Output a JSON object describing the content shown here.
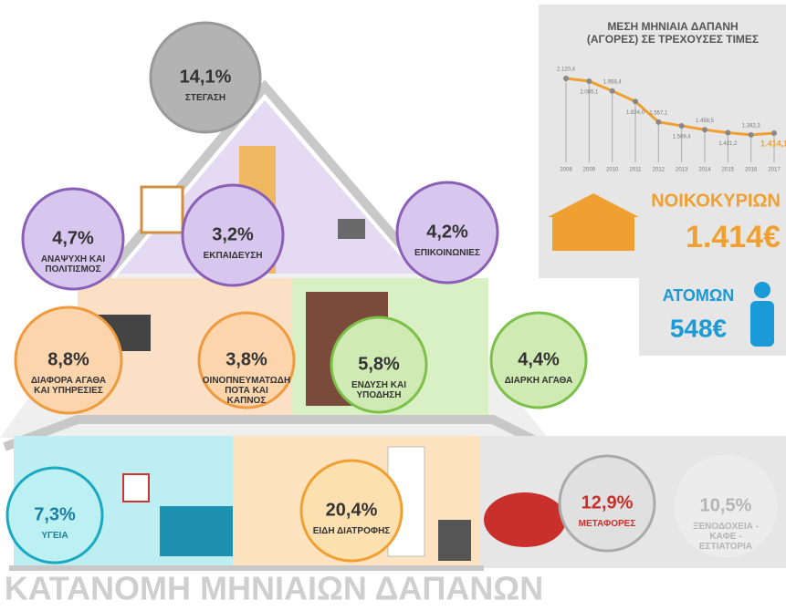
{
  "title": "ΚΑΤΑΝΟΜΗ ΜΗΝΙΑΙΩΝ ΔΑΠΑΝΩΝ",
  "items": [
    {
      "value": "14,1%",
      "label": "ΣΤΕΓΑΣΗ"
    },
    {
      "value": "4,7%",
      "label": "ΑΝΑΨΥΧΗ ΚΑΙ ΠΟΛΙΤΙΣΜΟΣ"
    },
    {
      "value": "3,2%",
      "label": "ΕΚΠΑΙΔΕΥΣΗ"
    },
    {
      "value": "4,2%",
      "label": "ΕΠΙΚΟΙΝΩΝΙΕΣ"
    },
    {
      "value": "8,8%",
      "label": "ΔΙΑΦΟΡΑ ΑΓΑΘΑ ΚΑΙ ΥΠΗΡΕΣΙΕΣ"
    },
    {
      "value": "3,8%",
      "label": "ΟΙΝΟΠΝΕΥΜΑΤΩΔΗ ΠΟΤΑ ΚΑΙ ΚΑΠΝΟΣ"
    },
    {
      "value": "5,8%",
      "label": "ΕΝΔΥΣΗ ΚΑΙ ΥΠΟΔΗΣΗ"
    },
    {
      "value": "4,4%",
      "label": "ΔΙΑΡΚΗ ΑΓΑΘΑ"
    },
    {
      "value": "7,3%",
      "label": "ΥΓΕΙΑ"
    },
    {
      "value": "20,4%",
      "label": "ΕΙΔΗ ΔΙΑΤΡΟΦΗΣ"
    },
    {
      "value": "12,9%",
      "label": "ΜΕΤΑΦΟΡΕΣ"
    },
    {
      "value": "10,5%",
      "label": "ΞΕΝΟΔΟΧΕΙΑ - ΚΑΦΕ - ΕΣΤΙΑΤΟΡΙΑ"
    }
  ],
  "chart_data": {
    "type": "line",
    "title": "ΜΕΣΗ ΜΗΝΙΑΙΑ ΔΑΠΑΝΗ (ΑΓΟΡΕΣ) ΣΕ ΤΡΕΧΟΥΣΕΣ ΤΙΜΕΣ",
    "categories": [
      "2008",
      "2009",
      "2010",
      "2011",
      "2012",
      "2013",
      "2014",
      "2015",
      "2016",
      "2017"
    ],
    "values": [
      2120.4,
      2085.1,
      1958.4,
      1824.0,
      1557.1,
      1509.4,
      1458.5,
      1421.2,
      1392.3,
      1414.1
    ],
    "value_labels": [
      "2.120,4",
      "2.085,1",
      "1.958,4",
      "1.824,0",
      "1.557,1",
      "1.509,4",
      "1.458,5",
      "1.421,2",
      "1.392,3",
      "1.414,1"
    ],
    "color": "#f0a030",
    "ylim": [
      1250,
      2250
    ]
  },
  "household": {
    "label": "ΝΟΙΚΟΚΥΡΙΩΝ",
    "amount": "1.414€"
  },
  "person": {
    "label": "ΑΤΟΜΩΝ",
    "amount": "548€"
  }
}
